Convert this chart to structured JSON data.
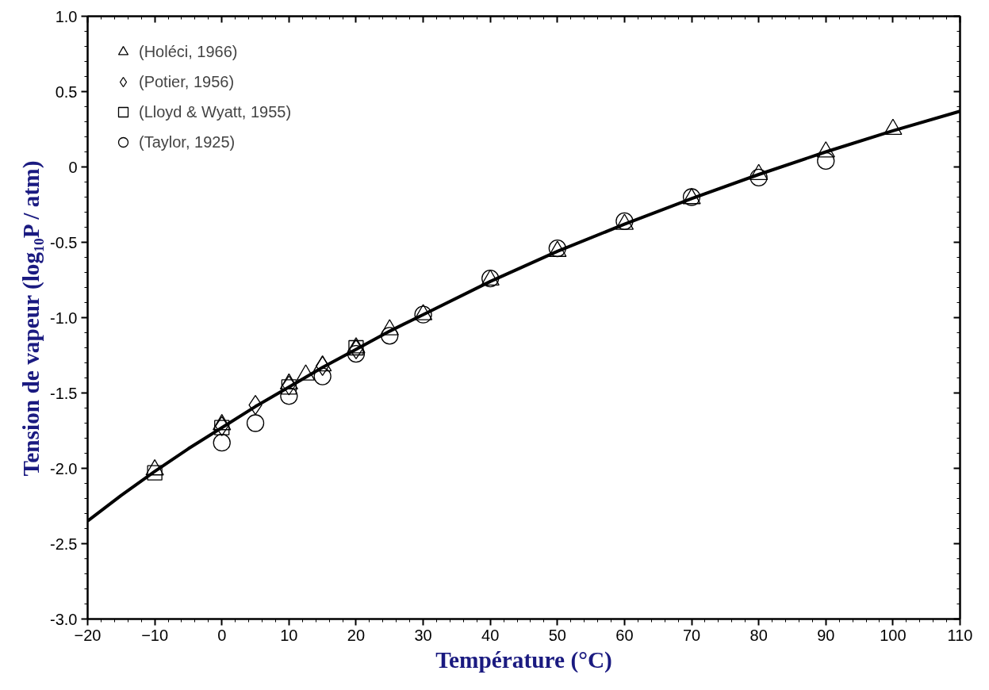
{
  "chart_data": {
    "type": "scatter",
    "xlabel": "Température (°C)",
    "ylabel": "Tension de vapeur (log₁₀P / atm)",
    "xlim": [
      -20,
      110
    ],
    "xticks": [
      -20,
      -10,
      0,
      10,
      20,
      30,
      40,
      50,
      60,
      70,
      80,
      90,
      100,
      110
    ],
    "ylim": [
      -3,
      1
    ],
    "yticks": [
      {
        "value": -3,
        "label": "-3.0"
      },
      {
        "value": -2.5,
        "label": "-2.5"
      },
      {
        "value": -2,
        "label": "-2.0"
      },
      {
        "value": -1.5,
        "label": "-1.5"
      },
      {
        "value": -1,
        "label": "-1.0"
      },
      {
        "value": -0.5,
        "label": "-0.5"
      },
      0,
      {
        "value": 0.5,
        "label": "0.5"
      },
      {
        "value": 1,
        "label": "1.0"
      }
    ],
    "grid": false,
    "legend": "top left",
    "series": [
      {
        "name": "(Holéci, 1966)",
        "marker": "triangle",
        "color": "#000000",
        "x": [
          -10,
          0,
          10,
          12.5,
          15,
          20,
          25,
          30,
          40,
          50,
          60,
          70,
          80,
          90,
          100
        ],
        "values": [
          -2.01,
          -1.71,
          -1.44,
          -1.38,
          -1.32,
          -1.2,
          -1.08,
          -0.98,
          -0.75,
          -0.56,
          -0.38,
          -0.21,
          -0.05,
          0.1,
          0.25
        ]
      },
      {
        "name": "(Potier, 1956)",
        "marker": "diamond",
        "color": "#000000",
        "x": [
          0,
          5,
          10,
          15,
          20
        ],
        "values": [
          -1.72,
          -1.58,
          -1.45,
          -1.32,
          -1.21
        ]
      },
      {
        "name": "(Lloyd & Wyatt, 1955)",
        "marker": "square",
        "color": "#000000",
        "x": [
          -10,
          0,
          10,
          20
        ],
        "values": [
          -2.03,
          -1.73,
          -1.46,
          -1.2
        ]
      },
      {
        "name": "(Taylor, 1925)",
        "marker": "circle",
        "color": "#000000",
        "x": [
          0,
          5,
          10,
          15,
          20,
          25,
          30,
          40,
          50,
          60,
          70,
          80,
          90
        ],
        "values": [
          -1.83,
          -1.7,
          -1.52,
          -1.39,
          -1.24,
          -1.12,
          -0.98,
          -0.74,
          -0.54,
          -0.36,
          -0.2,
          -0.07,
          0.04
        ]
      },
      {
        "type": "line",
        "color": "#000000",
        "line_style": "solid",
        "x": [
          -20,
          -15,
          -10,
          -5,
          0,
          5,
          10,
          15,
          20,
          25,
          30,
          40,
          50,
          60,
          70,
          80,
          90,
          100,
          110
        ],
        "values": [
          -2.35,
          -2.18,
          -2.02,
          -1.87,
          -1.73,
          -1.59,
          -1.46,
          -1.33,
          -1.21,
          -1.09,
          -0.98,
          -0.76,
          -0.56,
          -0.38,
          -0.21,
          -0.05,
          0.1,
          0.24,
          0.37
        ]
      }
    ]
  }
}
